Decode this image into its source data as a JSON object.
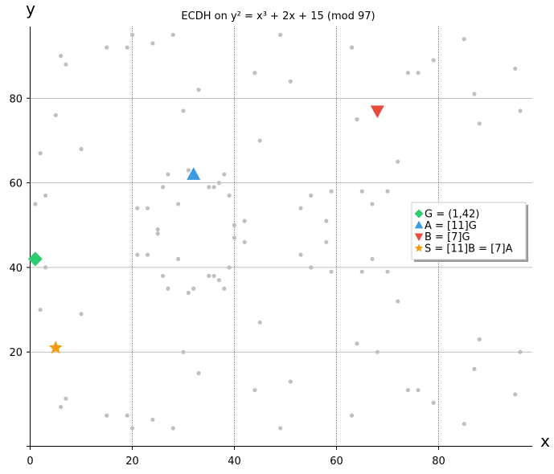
{
  "chart_data": {
    "type": "scatter",
    "title": "ECDH on y² = x³ + 2x + 15 (mod 97)",
    "xlabel": "x",
    "ylabel": "y",
    "xlim": [
      0,
      97
    ],
    "ylim": [
      0,
      97
    ],
    "xticks": [
      0,
      20,
      40,
      60,
      80
    ],
    "yticks": [
      20,
      40,
      60,
      80
    ],
    "grid": true,
    "legend_position": "right",
    "colors": {
      "points": "#c0c0c0",
      "grid": "#333333",
      "G": "#2ecc71",
      "A": "#3b9ae1",
      "B": "#e74c3c",
      "S": "#f39c12"
    },
    "curve_points": [
      [
        20,
        95
      ],
      [
        28,
        95
      ],
      [
        49,
        95
      ],
      [
        85,
        94
      ],
      [
        24,
        93
      ],
      [
        15,
        92
      ],
      [
        19,
        92
      ],
      [
        63,
        92
      ],
      [
        6,
        90
      ],
      [
        7,
        88
      ],
      [
        79,
        89
      ],
      [
        95,
        87
      ],
      [
        44,
        86
      ],
      [
        74,
        86
      ],
      [
        76,
        86
      ],
      [
        51,
        84
      ],
      [
        33,
        82
      ],
      [
        87,
        81
      ],
      [
        30,
        77
      ],
      [
        96,
        77
      ],
      [
        5,
        76
      ],
      [
        64,
        75
      ],
      [
        88,
        74
      ],
      [
        45,
        70
      ],
      [
        10,
        68
      ],
      [
        2,
        67
      ],
      [
        72,
        65
      ],
      [
        31,
        63
      ],
      [
        27,
        62
      ],
      [
        38,
        62
      ],
      [
        37,
        60
      ],
      [
        26,
        59
      ],
      [
        35,
        59
      ],
      [
        36,
        59
      ],
      [
        59,
        58
      ],
      [
        65,
        58
      ],
      [
        70,
        58
      ],
      [
        3,
        57
      ],
      [
        39,
        57
      ],
      [
        55,
        57
      ],
      [
        1,
        55
      ],
      [
        29,
        55
      ],
      [
        67,
        55
      ],
      [
        21,
        54
      ],
      [
        23,
        54
      ],
      [
        53,
        54
      ],
      [
        42,
        51
      ],
      [
        58,
        51
      ],
      [
        40,
        50
      ],
      [
        25,
        49
      ],
      [
        25,
        48
      ],
      [
        40,
        47
      ],
      [
        42,
        46
      ],
      [
        58,
        46
      ],
      [
        21,
        43
      ],
      [
        23,
        43
      ],
      [
        53,
        43
      ],
      [
        67,
        42
      ],
      [
        29,
        42
      ],
      [
        3,
        40
      ],
      [
        39,
        40
      ],
      [
        55,
        40
      ],
      [
        59,
        39
      ],
      [
        65,
        39
      ],
      [
        70,
        39
      ],
      [
        26,
        38
      ],
      [
        35,
        38
      ],
      [
        36,
        38
      ],
      [
        37,
        37
      ],
      [
        27,
        35
      ],
      [
        32,
        35
      ],
      [
        38,
        35
      ],
      [
        31,
        34
      ],
      [
        72,
        32
      ],
      [
        2,
        30
      ],
      [
        10,
        29
      ],
      [
        45,
        27
      ],
      [
        88,
        23
      ],
      [
        64,
        22
      ],
      [
        30,
        20
      ],
      [
        68,
        20
      ],
      [
        96,
        20
      ],
      [
        87,
        16
      ],
      [
        33,
        15
      ],
      [
        51,
        13
      ],
      [
        44,
        11
      ],
      [
        74,
        11
      ],
      [
        76,
        11
      ],
      [
        95,
        10
      ],
      [
        7,
        9
      ],
      [
        79,
        8
      ],
      [
        6,
        7
      ],
      [
        15,
        5
      ],
      [
        19,
        5
      ],
      [
        63,
        5
      ],
      [
        24,
        4
      ],
      [
        85,
        3
      ],
      [
        20,
        2
      ],
      [
        28,
        2
      ],
      [
        49,
        2
      ]
    ],
    "special_points": [
      {
        "key": "G",
        "label": "G = (1,42)",
        "x": 1,
        "y": 42,
        "marker": "diamond"
      },
      {
        "key": "A",
        "label": "A = [11]G",
        "x": 32,
        "y": 62,
        "marker": "triangle-up"
      },
      {
        "key": "B",
        "label": "B = [7]G",
        "x": 68,
        "y": 77,
        "marker": "triangle-down"
      },
      {
        "key": "S",
        "label": "S = [11]B = [7]A",
        "x": 5,
        "y": 21,
        "marker": "star"
      }
    ]
  }
}
